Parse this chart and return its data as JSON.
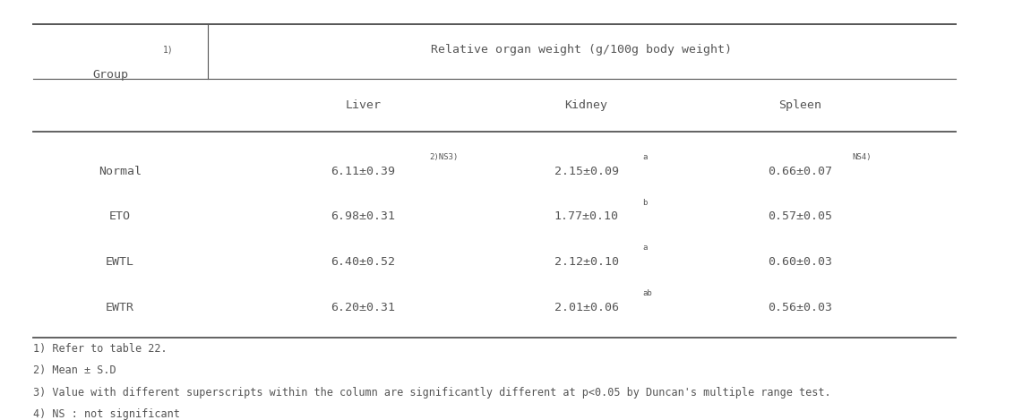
{
  "col_header_main": "Relative organ weight (g/100g body weight)",
  "col_headers": [
    "Liver",
    "Kidney",
    "Spleen"
  ],
  "rows": [
    {
      "group": "Normal",
      "liver": "6.11±0.39",
      "liver_super": "2)NS3)",
      "kidney": "2.15±0.09",
      "kidney_super": "a",
      "spleen": "0.66±0.07",
      "spleen_super": "NS4)"
    },
    {
      "group": "ETO",
      "liver": "6.98±0.31",
      "liver_super": "",
      "kidney": "1.77±0.10",
      "kidney_super": "b",
      "spleen": "0.57±0.05",
      "spleen_super": ""
    },
    {
      "group": "EWTL",
      "liver": "6.40±0.52",
      "liver_super": "",
      "kidney": "2.12±0.10",
      "kidney_super": "a",
      "spleen": "0.60±0.03",
      "spleen_super": ""
    },
    {
      "group": "EWTR",
      "liver": "6.20±0.31",
      "liver_super": "",
      "kidney": "2.01±0.06",
      "kidney_super": "ab",
      "spleen": "0.56±0.03",
      "spleen_super": ""
    }
  ],
  "footnotes": [
    "1) Refer to table 22.",
    "2) Mean ± S.D",
    "3) Value with different superscripts within the column are significantly different at p<0.05 by Duncan's multiple range test.",
    "4) NS : not significant"
  ],
  "text_color": "#555555",
  "bg_color": "#ffffff",
  "font_size": 9.5,
  "footnote_font_size": 8.5
}
